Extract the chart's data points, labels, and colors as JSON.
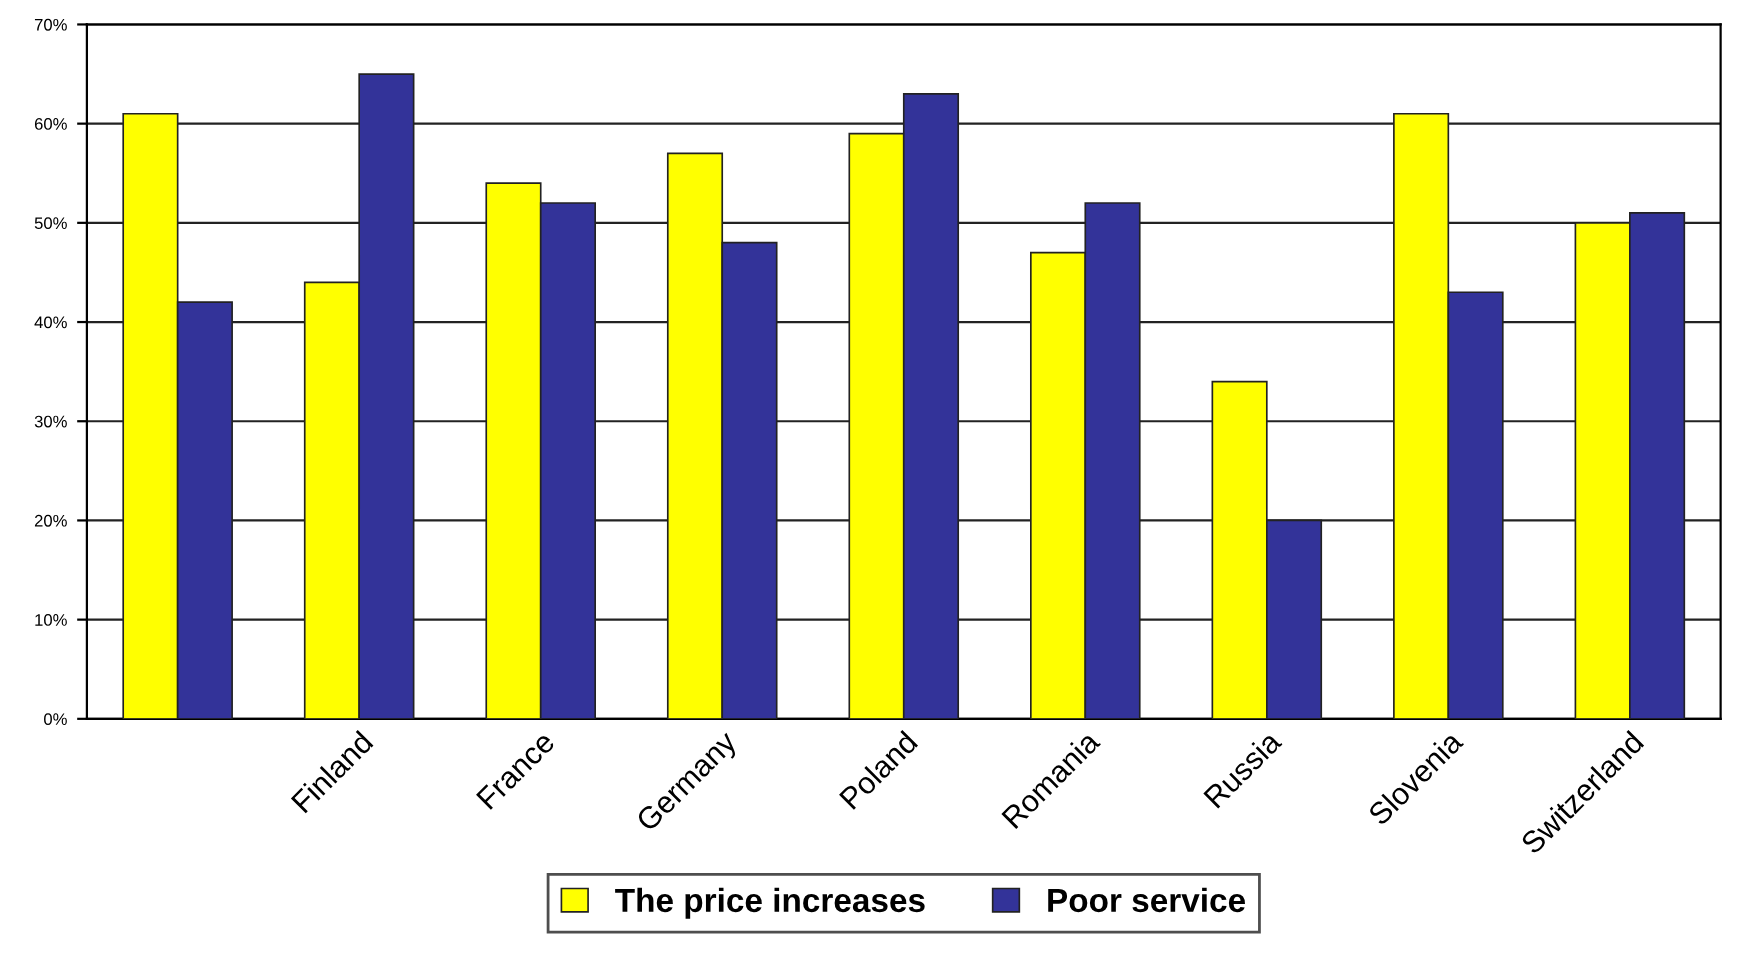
{
  "chart_data": {
    "type": "bar",
    "categories": [
      null,
      "Finland",
      "France",
      "Germany",
      "Poland",
      "Romania",
      "Russia",
      "Slovenia",
      "Switzerland"
    ],
    "series": [
      {
        "name": "The price increases",
        "color": "#ffff00",
        "values": [
          61,
          44,
          54,
          57,
          59,
          47,
          34,
          61,
          50
        ]
      },
      {
        "name": "Poor service",
        "color": "#333399",
        "values": [
          42,
          65,
          52,
          48,
          63,
          52,
          20,
          43,
          51
        ]
      }
    ],
    "ylim": [
      0,
      70
    ],
    "yticks": [
      {
        "value": 0,
        "label": "0%"
      },
      {
        "value": 10,
        "label": "10%"
      },
      {
        "value": 20,
        "label": "20%"
      },
      {
        "value": 30,
        "label": "30%"
      },
      {
        "value": 40,
        "label": "40%"
      },
      {
        "value": 50,
        "label": "50%"
      },
      {
        "value": 60,
        "label": "60%"
      },
      {
        "value": 70,
        "label": "70%"
      }
    ],
    "grid": "y",
    "legend": "bottom"
  }
}
